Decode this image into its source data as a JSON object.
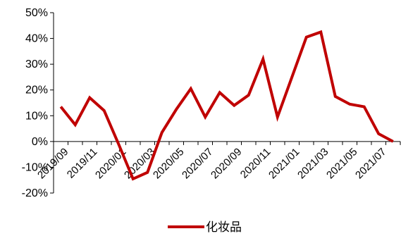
{
  "chart_data": {
    "type": "line",
    "title": "",
    "xlabel": "",
    "ylabel": "",
    "ylim": [
      -20,
      50
    ],
    "y_ticks": [
      -20,
      -10,
      0,
      10,
      20,
      30,
      40,
      50
    ],
    "y_tick_labels": [
      "-20%",
      "-10%",
      "0%",
      "10%",
      "20%",
      "30%",
      "40%",
      "50%"
    ],
    "x": [
      "2019/09",
      "2019/10",
      "2019/11",
      "2019/12",
      "2020/01",
      "2020/02",
      "2020/03",
      "2020/04",
      "2020/05",
      "2020/06",
      "2020/07",
      "2020/08",
      "2020/09",
      "2020/10",
      "2020/11",
      "2020/12",
      "2021/01",
      "2021/02",
      "2021/03",
      "2021/04",
      "2021/05",
      "2021/06",
      "2021/07",
      "2021/08"
    ],
    "x_tick_labels": [
      "2019/09",
      "2019/11",
      "2020/01",
      "2020/03",
      "2020/05",
      "2020/07",
      "2020/09",
      "2020/11",
      "2021/01",
      "2021/03",
      "2021/05",
      "2021/07"
    ],
    "series": [
      {
        "name": "化妆品",
        "color": "#C00000",
        "values": [
          13.5,
          6.5,
          17.0,
          12.0,
          -1.0,
          -14.5,
          -12.0,
          3.5,
          12.5,
          20.5,
          9.5,
          19.0,
          14.0,
          18.0,
          32.0,
          9.5,
          25.0,
          40.5,
          42.5,
          17.5,
          14.5,
          13.5,
          3.0,
          0.0
        ]
      }
    ],
    "grid": false,
    "legend": "bottom-center"
  }
}
